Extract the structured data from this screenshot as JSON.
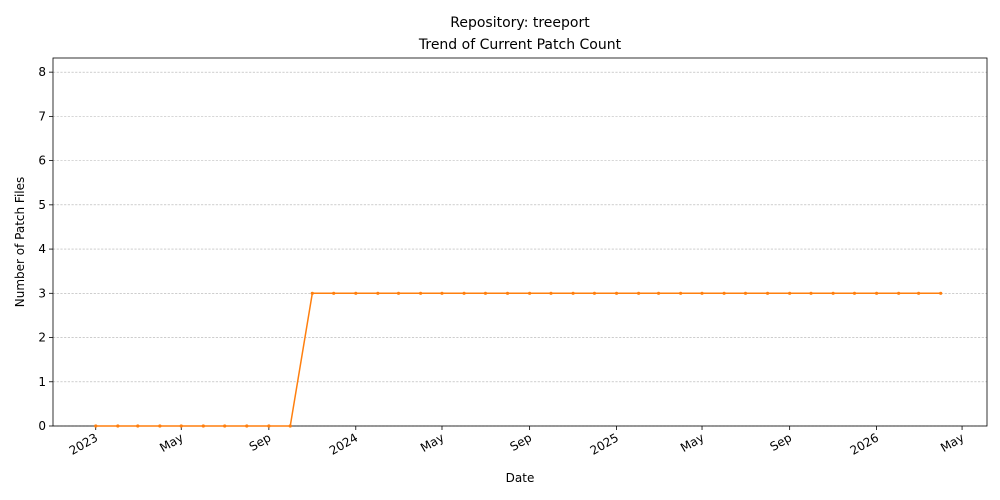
{
  "chart_data": {
    "type": "line",
    "title": "Repository: treeport",
    "subtitle": "Trend of Current Patch Count",
    "x_label": "Date",
    "y_label": "Number of Patch Files",
    "x": [
      "2023-01",
      "2023-02",
      "2023-03",
      "2023-04",
      "2023-05",
      "2023-06",
      "2023-07",
      "2023-08",
      "2023-09",
      "2023-10",
      "2023-11",
      "2023-12",
      "2024-01",
      "2024-02",
      "2024-03",
      "2024-04",
      "2024-05",
      "2024-06",
      "2024-07",
      "2024-08",
      "2024-09",
      "2024-10",
      "2024-11",
      "2024-12",
      "2025-01",
      "2025-02",
      "2025-03",
      "2025-04",
      "2025-05",
      "2025-06",
      "2025-07",
      "2025-08",
      "2025-09",
      "2025-10",
      "2025-11",
      "2025-12",
      "2026-01",
      "2026-02",
      "2026-03",
      "2026-04"
    ],
    "values": [
      0,
      0,
      0,
      0,
      0,
      0,
      0,
      0,
      0,
      0,
      3,
      3,
      3,
      3,
      3,
      3,
      3,
      3,
      3,
      3,
      3,
      3,
      3,
      3,
      3,
      3,
      3,
      3,
      3,
      3,
      3,
      3,
      3,
      3,
      3,
      3,
      3,
      3,
      3,
      3
    ],
    "color": "#ff7f0e",
    "xlim": [
      "2022-11-02",
      "2026-06-05"
    ],
    "xticks": [
      {
        "value": "2023-01-01",
        "label": "2023"
      },
      {
        "value": "2023-05-01",
        "label": "May"
      },
      {
        "value": "2023-09-01",
        "label": "Sep"
      },
      {
        "value": "2024-01-01",
        "label": "2024"
      },
      {
        "value": "2024-05-01",
        "label": "May"
      },
      {
        "value": "2024-09-01",
        "label": "Sep"
      },
      {
        "value": "2025-01-01",
        "label": "2025"
      },
      {
        "value": "2025-05-01",
        "label": "May"
      },
      {
        "value": "2025-09-01",
        "label": "Sep"
      },
      {
        "value": "2026-01-01",
        "label": "2026"
      },
      {
        "value": "2026-05-01",
        "label": "May"
      }
    ],
    "ylim": [
      0,
      8.32
    ],
    "yticks": [
      0,
      1,
      2,
      3,
      4,
      5,
      6,
      7,
      8
    ],
    "grid": true
  }
}
